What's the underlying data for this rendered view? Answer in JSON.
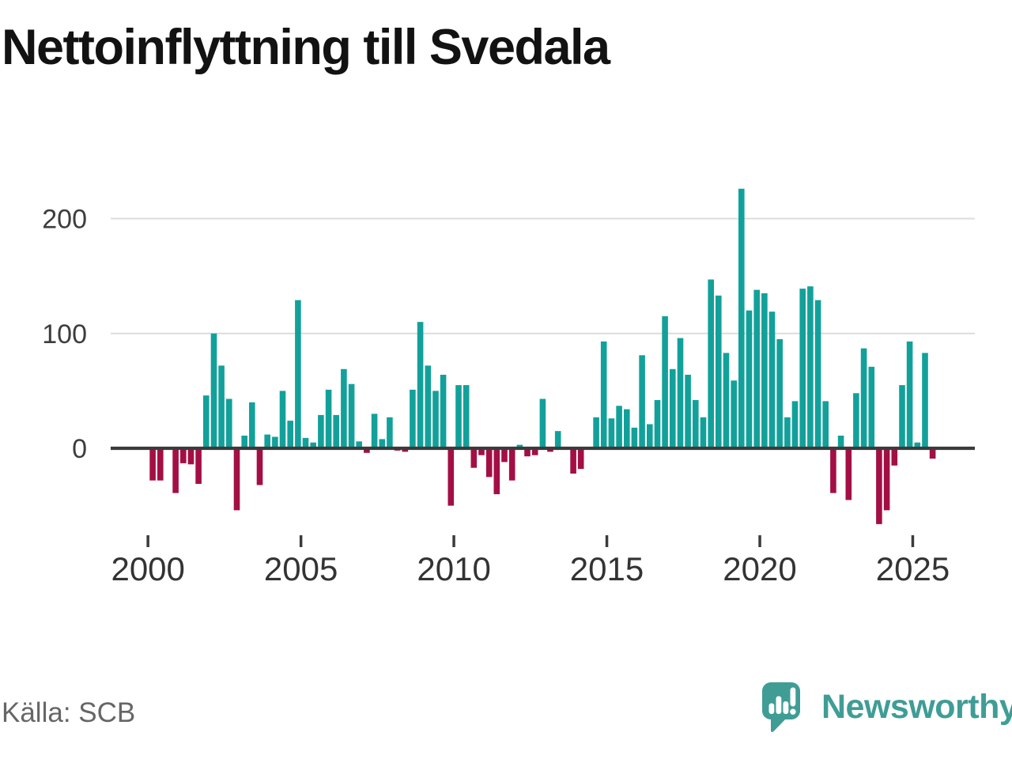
{
  "header": {
    "title": "Nettoinflyttning till Svedala"
  },
  "footer": {
    "source": "Källa: SCB",
    "brand": {
      "name": "Newsworthy",
      "icon": "speech-bubble-bar-chart-icon"
    }
  },
  "colors": {
    "positive_bar": "#12a19a",
    "negative_bar": "#a30f44",
    "zero_axis": "#3b3b3b",
    "gridline": "#dcdcdc",
    "y_tick_label": "#3d3d3d",
    "x_tick_label": "#333333",
    "title_text": "#121212",
    "source_text": "#666666",
    "brand_teal": "#3f9d95",
    "background": "#ffffff"
  },
  "chart_data": {
    "type": "bar",
    "title": "Nettoinflyttning till Svedala",
    "frequency": "quarterly",
    "start_period": "2000-Q1",
    "end_period": "2025-Q3",
    "xlabel": "",
    "ylabel": "",
    "x_tick_labels": [
      "2000",
      "2005",
      "2010",
      "2015",
      "2020",
      "2025"
    ],
    "y_ticks": [
      0,
      100,
      200
    ],
    "y_tick_labels": [
      "0",
      "100",
      "200"
    ],
    "ylim": [
      -75,
      240
    ],
    "grid": "horizontal",
    "legend": "none",
    "values": [
      -28,
      -28,
      0,
      -39,
      -13,
      -14,
      -31,
      46,
      100,
      72,
      43,
      -54,
      11,
      40,
      -32,
      12,
      10,
      50,
      24,
      129,
      9,
      5,
      29,
      51,
      29,
      69,
      56,
      6,
      -4,
      30,
      8,
      27,
      -2,
      -3,
      51,
      110,
      72,
      50,
      64,
      -50,
      55,
      55,
      -17,
      -6,
      -25,
      -40,
      -12,
      -28,
      3,
      -7,
      -6,
      43,
      -3,
      15,
      0,
      -22,
      -18,
      0,
      27,
      93,
      26,
      37,
      34,
      18,
      81,
      21,
      42,
      115,
      69,
      96,
      64,
      42,
      27,
      147,
      133,
      83,
      59,
      226,
      120,
      138,
      135,
      119,
      95,
      27,
      41,
      139,
      141,
      129,
      41,
      -39,
      11,
      -45,
      48,
      87,
      71,
      -66,
      -54,
      -15,
      55,
      93,
      5,
      83,
      -9
    ]
  }
}
